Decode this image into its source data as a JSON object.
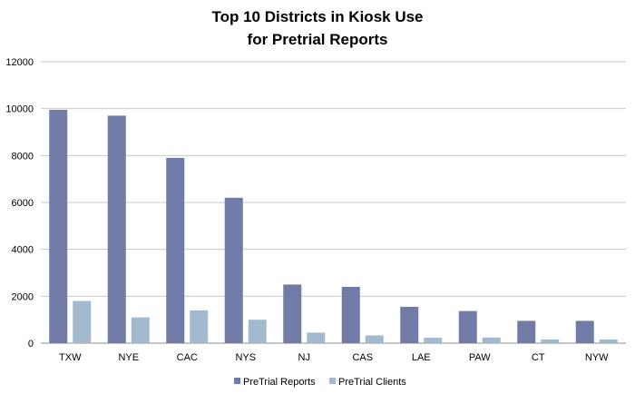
{
  "chart_data": {
    "type": "bar",
    "title_lines": [
      "Top 10 Districts in Kiosk Use",
      "for Pretrial Reports"
    ],
    "categories": [
      "TXW",
      "NYE",
      "CAC",
      "NYS",
      "NJ",
      "CAS",
      "LAE",
      "PAW",
      "CT",
      "NYW"
    ],
    "series": [
      {
        "name": "PreTrial Reports",
        "color": "#717BA8",
        "values": [
          9950,
          9700,
          7900,
          6200,
          2500,
          2400,
          1550,
          1370,
          950,
          950
        ]
      },
      {
        "name": "PreTrial Clients",
        "color": "#A3B9CF",
        "values": [
          1800,
          1100,
          1400,
          1000,
          450,
          330,
          230,
          240,
          160,
          160
        ]
      }
    ],
    "y_ticks": [
      "0",
      "2000",
      "4000",
      "6000",
      "8000",
      "10000",
      "12000"
    ],
    "ylim": [
      0,
      12000
    ],
    "grid": true,
    "legend_position": "bottom"
  }
}
